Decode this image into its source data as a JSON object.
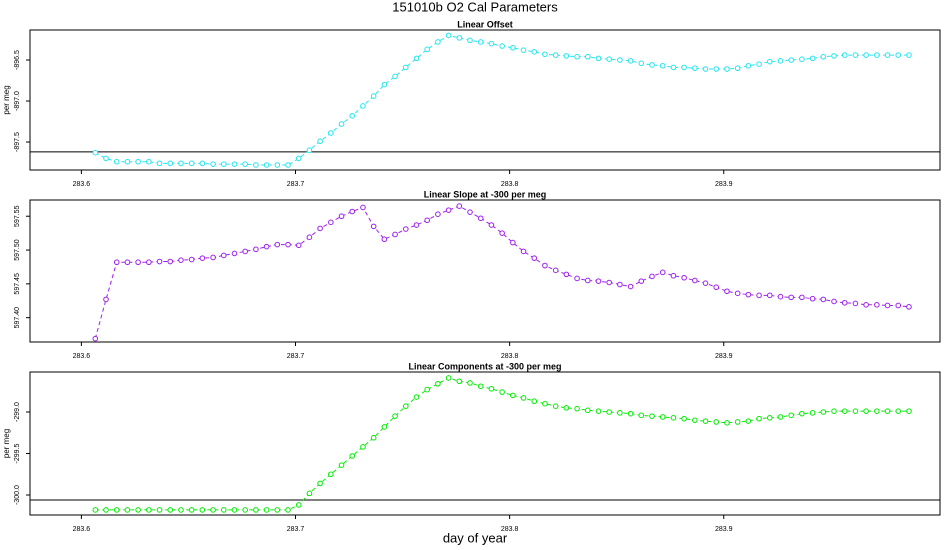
{
  "title": "151010b   O2 Cal Parameters",
  "xlabel": "day of year",
  "chart_data": [
    {
      "type": "line",
      "title": "Linear Offset",
      "ylabel": "per meg",
      "x": [
        283.6065,
        283.6115,
        283.6165,
        283.6215,
        283.6265,
        283.6315,
        283.6365,
        283.6415,
        283.6465,
        283.6515,
        283.6565,
        283.6615,
        283.6665,
        283.6715,
        283.6765,
        283.6815,
        283.6865,
        283.6915,
        283.6965,
        283.7015,
        283.7065,
        283.7115,
        283.7165,
        283.7215,
        283.7265,
        283.7315,
        283.7365,
        283.7415,
        283.7465,
        283.7515,
        283.7565,
        283.7615,
        283.7665,
        283.7715,
        283.7765,
        283.7815,
        283.7865,
        283.7915,
        283.7965,
        283.8015,
        283.8065,
        283.8115,
        283.8165,
        283.8215,
        283.8265,
        283.8315,
        283.8365,
        283.8415,
        283.8465,
        283.8515,
        283.8565,
        283.8615,
        283.8665,
        283.8715,
        283.8765,
        283.8815,
        283.8865,
        283.8915,
        283.8965,
        283.9015,
        283.9065,
        283.9115,
        283.9165,
        283.9215,
        283.9265,
        283.9315,
        283.9365,
        283.9415,
        283.9465,
        283.9515,
        283.9565,
        283.9615,
        283.9665,
        283.9715,
        283.9765,
        283.9815,
        283.9865
      ],
      "series": [
        {
          "color": "#22e6f0",
          "values": [
            -897.63,
            -897.7,
            -897.74,
            -897.74,
            -897.74,
            -897.74,
            -897.76,
            -897.76,
            -897.76,
            -897.76,
            -897.76,
            -897.77,
            -897.77,
            -897.77,
            -897.77,
            -897.78,
            -897.78,
            -897.78,
            -897.78,
            -897.7,
            -897.6,
            -897.49,
            -897.39,
            -897.28,
            -897.18,
            -897.06,
            -896.94,
            -896.8,
            -896.7,
            -896.59,
            -896.48,
            -896.37,
            -896.28,
            -896.2,
            -896.23,
            -896.26,
            -896.28,
            -896.3,
            -896.33,
            -896.35,
            -896.38,
            -896.4,
            -896.43,
            -896.44,
            -896.45,
            -896.46,
            -896.46,
            -896.48,
            -896.49,
            -896.5,
            -896.51,
            -896.54,
            -896.56,
            -896.57,
            -896.59,
            -896.59,
            -896.6,
            -896.61,
            -896.61,
            -896.61,
            -896.6,
            -896.57,
            -896.55,
            -896.52,
            -896.51,
            -896.5,
            -896.49,
            -896.48,
            -896.46,
            -896.45,
            -896.44,
            -896.44,
            -896.44,
            -896.44,
            -896.44,
            -896.44,
            -896.44
          ]
        }
      ],
      "hline": -897.62,
      "xlim": [
        283.576,
        284.001
      ],
      "xticks": [
        283.6,
        283.7,
        283.8,
        283.9
      ],
      "ylim": [
        -897.841,
        -896.134
      ],
      "yticks": [
        -896.5,
        {
          "value": -897,
          "label": "-897.0"
        },
        -897.5
      ]
    },
    {
      "type": "line",
      "title": "Linear Slope at -300 per meg",
      "x": [
        283.6065,
        283.6115,
        283.6165,
        283.6215,
        283.6265,
        283.6315,
        283.6365,
        283.6415,
        283.6465,
        283.6515,
        283.6565,
        283.6615,
        283.6665,
        283.6715,
        283.6765,
        283.6815,
        283.6865,
        283.6915,
        283.6965,
        283.7015,
        283.7065,
        283.7115,
        283.7165,
        283.7215,
        283.7265,
        283.7315,
        283.7365,
        283.7415,
        283.7465,
        283.7515,
        283.7565,
        283.7615,
        283.7665,
        283.7715,
        283.7765,
        283.7815,
        283.7865,
        283.7915,
        283.7965,
        283.8015,
        283.8065,
        283.8115,
        283.8165,
        283.8215,
        283.8265,
        283.8315,
        283.8365,
        283.8415,
        283.8465,
        283.8515,
        283.8565,
        283.8615,
        283.8665,
        283.8715,
        283.8765,
        283.8815,
        283.8865,
        283.8915,
        283.8965,
        283.9015,
        283.9065,
        283.9115,
        283.9165,
        283.9215,
        283.9265,
        283.9315,
        283.9365,
        283.9415,
        283.9465,
        283.9515,
        283.9565,
        283.9615,
        283.9665,
        283.9715,
        283.9765,
        283.9815,
        283.9865
      ],
      "series": [
        {
          "color": "#a020f0",
          "values": [
            597.369,
            597.427,
            597.482,
            597.482,
            597.482,
            597.482,
            597.483,
            597.483,
            597.485,
            597.486,
            597.488,
            597.489,
            597.492,
            597.495,
            597.498,
            597.501,
            597.505,
            597.508,
            597.508,
            597.507,
            597.519,
            597.532,
            597.541,
            597.55,
            597.557,
            597.563,
            597.535,
            597.516,
            597.523,
            597.531,
            597.537,
            597.544,
            597.553,
            597.559,
            597.565,
            597.556,
            597.547,
            597.537,
            597.525,
            597.511,
            597.498,
            597.488,
            597.477,
            597.47,
            597.464,
            597.458,
            597.455,
            597.454,
            597.452,
            597.449,
            597.446,
            597.454,
            597.461,
            597.467,
            597.462,
            597.459,
            597.455,
            597.451,
            597.445,
            597.439,
            597.436,
            597.434,
            597.433,
            597.433,
            597.431,
            597.43,
            597.43,
            597.428,
            597.427,
            597.424,
            597.422,
            597.421,
            597.419,
            597.419,
            597.418,
            597.418,
            597.416
          ]
        }
      ],
      "xlim": [
        283.576,
        284.001
      ],
      "xticks": [
        283.6,
        283.7,
        283.8,
        283.9
      ],
      "ylim": [
        597.364,
        597.574
      ],
      "yticks": [
        {
          "value": 597.4,
          "label": "597.40"
        },
        597.45,
        {
          "value": 597.5,
          "label": "597.50"
        },
        597.55
      ]
    },
    {
      "type": "line",
      "title": "Linear Components at -300 per meg",
      "ylabel": "per meg",
      "x": [
        283.6065,
        283.6115,
        283.6165,
        283.6215,
        283.6265,
        283.6315,
        283.6365,
        283.6415,
        283.6465,
        283.6515,
        283.6565,
        283.6615,
        283.6665,
        283.6715,
        283.6765,
        283.6815,
        283.6865,
        283.6915,
        283.6965,
        283.7015,
        283.7065,
        283.7115,
        283.7165,
        283.7215,
        283.7265,
        283.7315,
        283.7365,
        283.7415,
        283.7465,
        283.7515,
        283.7565,
        283.7615,
        283.7665,
        283.7715,
        283.7765,
        283.7815,
        283.7865,
        283.7915,
        283.7965,
        283.8015,
        283.8065,
        283.8115,
        283.8165,
        283.8215,
        283.8265,
        283.8315,
        283.8365,
        283.8415,
        283.8465,
        283.8515,
        283.8565,
        283.8615,
        283.8665,
        283.8715,
        283.8765,
        283.8815,
        283.8865,
        283.8915,
        283.8965,
        283.9015,
        283.9065,
        283.9115,
        283.9165,
        283.9215,
        283.9265,
        283.9315,
        283.9365,
        283.9415,
        283.9465,
        283.9515,
        283.9565,
        283.9615,
        283.9665,
        283.9715,
        283.9765,
        283.9815,
        283.9865
      ],
      "series": [
        {
          "color": "#00ee00",
          "values": [
            -300.18,
            -300.18,
            -300.18,
            -300.18,
            -300.18,
            -300.18,
            -300.18,
            -300.18,
            -300.18,
            -300.18,
            -300.18,
            -300.18,
            -300.18,
            -300.18,
            -300.18,
            -300.18,
            -300.18,
            -300.18,
            -300.18,
            -300.12,
            -299.98,
            -299.86,
            -299.75,
            -299.64,
            -299.53,
            -299.42,
            -299.31,
            -299.18,
            -299.05,
            -298.93,
            -298.82,
            -298.73,
            -298.66,
            -298.59,
            -298.63,
            -298.65,
            -298.69,
            -298.72,
            -298.76,
            -298.8,
            -298.83,
            -298.87,
            -298.9,
            -298.93,
            -298.95,
            -298.96,
            -298.98,
            -298.99,
            -299.0,
            -299.01,
            -299.02,
            -299.04,
            -299.05,
            -299.06,
            -299.07,
            -299.08,
            -299.1,
            -299.11,
            -299.12,
            -299.13,
            -299.12,
            -299.11,
            -299.08,
            -299.07,
            -299.06,
            -299.04,
            -299.02,
            -299.01,
            -299.0,
            -298.99,
            -298.99,
            -298.99,
            -298.99,
            -298.99,
            -298.99,
            -298.99,
            -298.99
          ]
        }
      ],
      "hline": -300.06,
      "xlim": [
        283.576,
        284.001
      ],
      "xticks": [
        283.6,
        283.7,
        283.8,
        283.9
      ],
      "ylim": [
        -300.241,
        -298.518
      ],
      "yticks": [
        {
          "value": -299,
          "label": "-299.0"
        },
        -299.5,
        {
          "value": -300,
          "label": "-300.0"
        }
      ]
    }
  ]
}
